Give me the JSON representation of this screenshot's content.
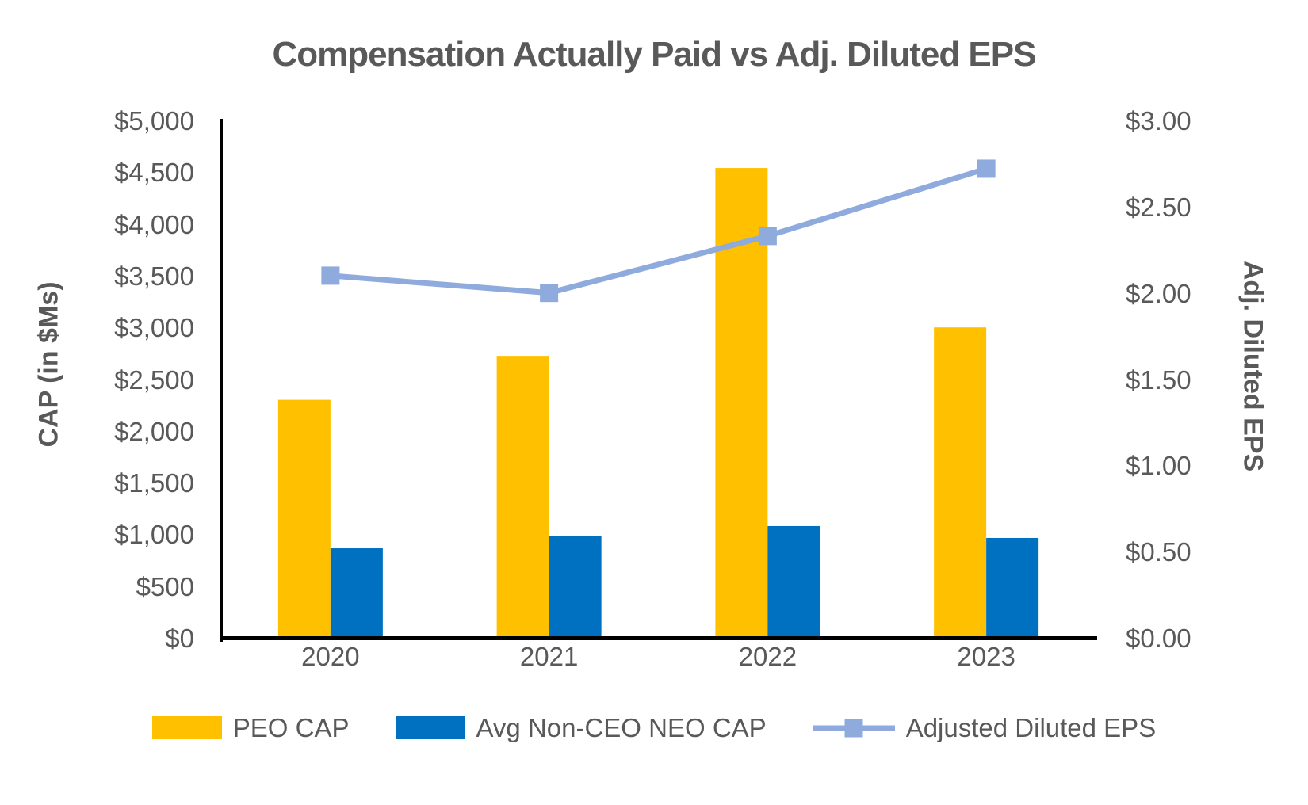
{
  "title": "Compensation Actually Paid vs Adj. Diluted EPS",
  "colors": {
    "text": "#595959",
    "axis_line": "#000000",
    "peo_bar": "#FFC000",
    "neo_bar": "#0070C0",
    "eps_line": "#8FAADC"
  },
  "chart_data": {
    "type": "bar",
    "subtype": "grouped-bar-with-line-overlay",
    "title": "Compensation Actually Paid vs Adj. Diluted EPS",
    "categories": [
      "2020",
      "2021",
      "2022",
      "2023"
    ],
    "series": [
      {
        "name": "PEO CAP",
        "type": "bar",
        "axis": "left",
        "color": "#FFC000",
        "values": [
          2300,
          2725,
          4540,
          3000
        ]
      },
      {
        "name": "Avg Non-CEO NEO CAP",
        "type": "bar",
        "axis": "left",
        "color": "#0070C0",
        "values": [
          865,
          985,
          1080,
          965
        ]
      },
      {
        "name": "Adjusted Diluted EPS",
        "type": "line",
        "axis": "right",
        "color": "#8FAADC",
        "marker": "square",
        "values": [
          2.1,
          2.0,
          2.33,
          2.72
        ]
      }
    ],
    "left_axis": {
      "label": "CAP (in $Ms)",
      "min": 0,
      "max": 5000,
      "step": 500,
      "tick_labels": [
        "$0",
        "$500",
        "$1,000",
        "$1,500",
        "$2,000",
        "$2,500",
        "$3,000",
        "$3,500",
        "$4,000",
        "$4,500",
        "$5,000"
      ]
    },
    "right_axis": {
      "label": "Adj. Diluted EPS",
      "min": 0,
      "max": 3,
      "step": 0.5,
      "tick_labels": [
        "$0.00",
        "$0.50",
        "$1.00",
        "$1.50",
        "$2.00",
        "$2.50",
        "$3.00"
      ]
    },
    "grid": false,
    "legend_position": "bottom"
  }
}
